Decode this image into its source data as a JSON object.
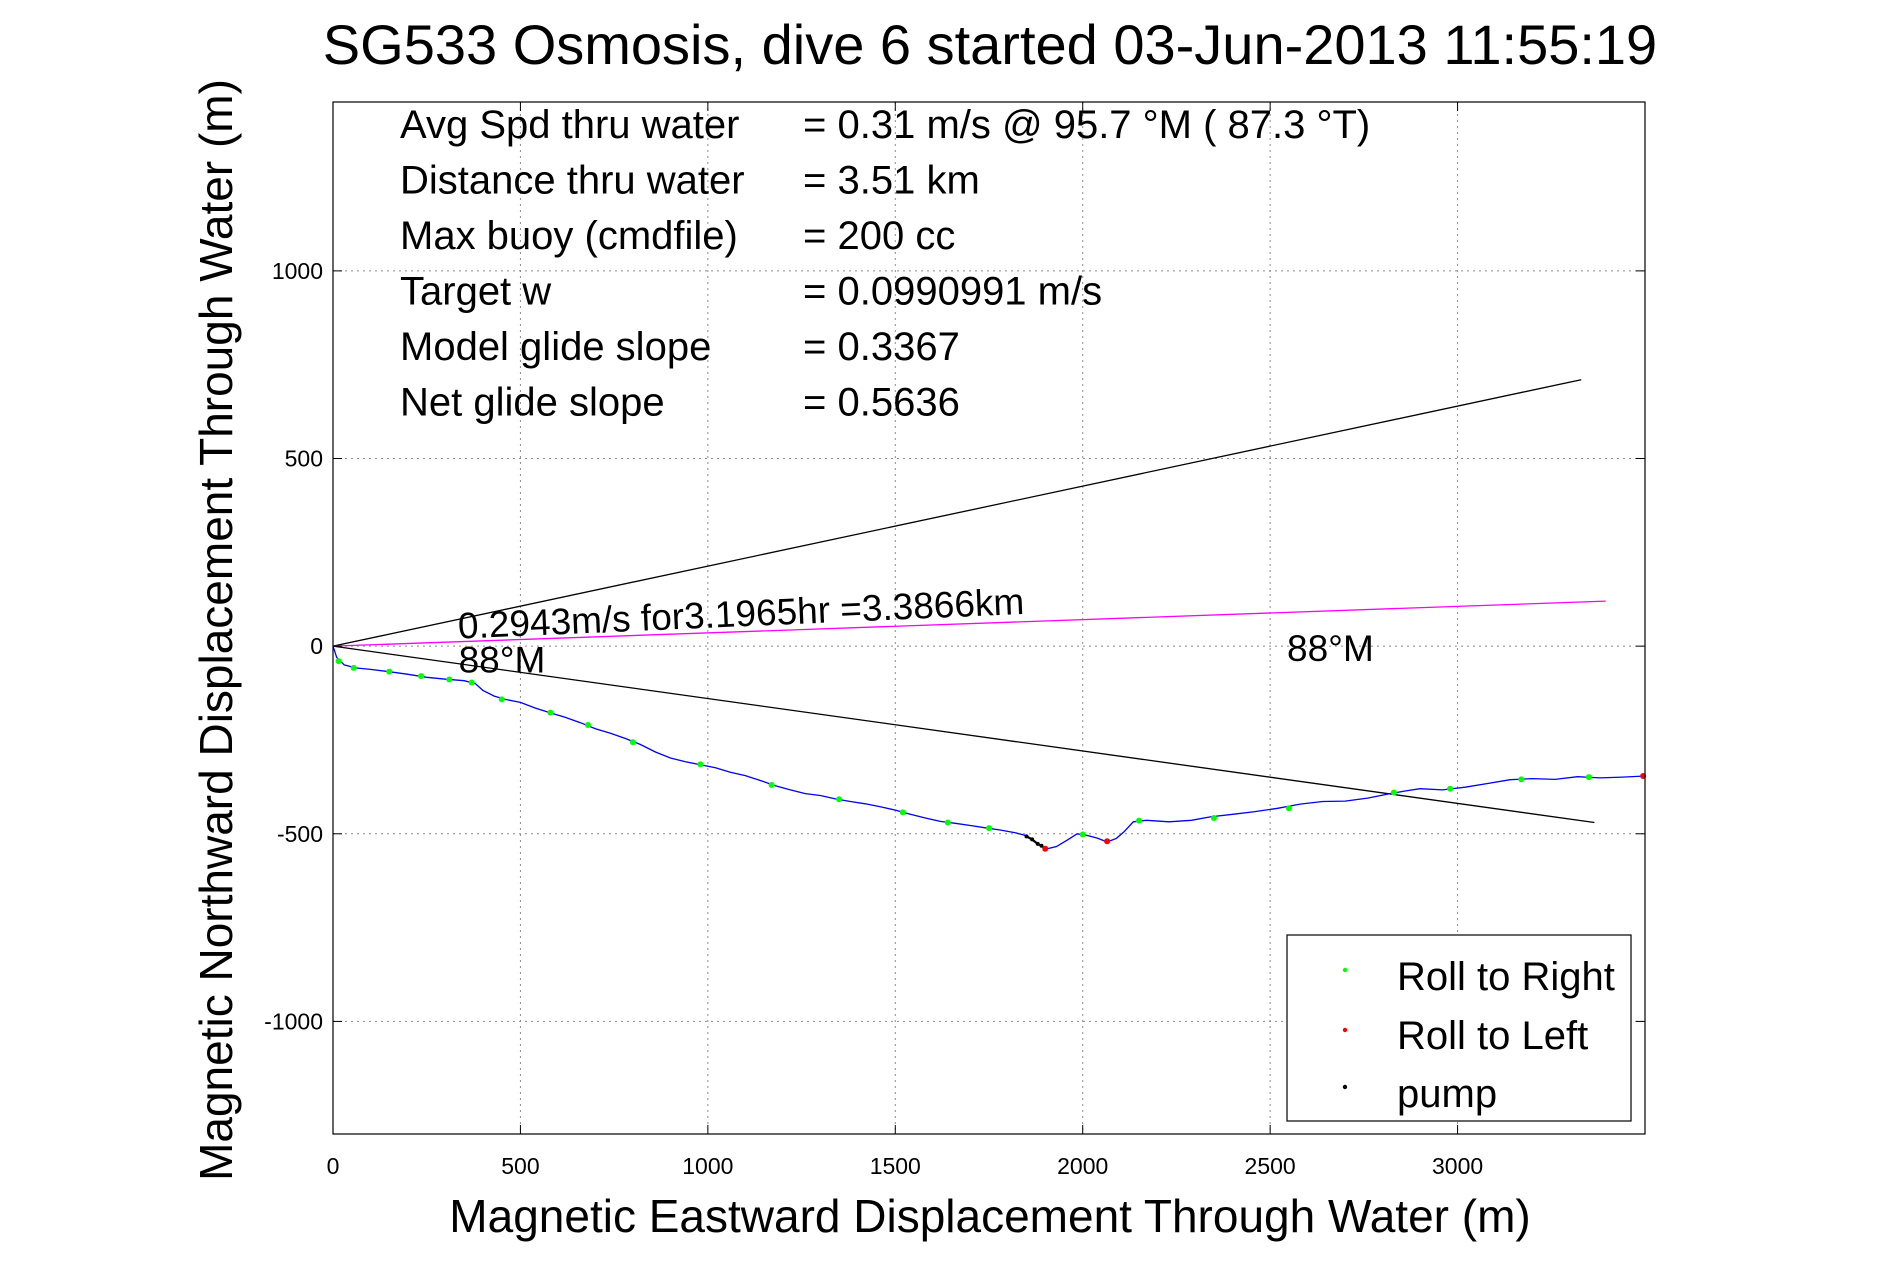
{
  "chart_data": {
    "type": "line",
    "title": "SG533 Osmosis, dive 6 started 03-Jun-2013 11:55:19",
    "xlabel": "Magnetic Eastward Displacement Through Water (m)",
    "ylabel": "Magnetic Northward Displacement Through Water (m)",
    "xlim": [
      0,
      3500
    ],
    "ylim": [
      -1300,
      1450
    ],
    "xticks": [
      0,
      500,
      1000,
      1500,
      2000,
      2500,
      3000
    ],
    "yticks": [
      -1000,
      -500,
      0,
      500,
      1000
    ],
    "grid": true,
    "legend_position": "bottom-right",
    "stats": [
      {
        "label": "Avg Spd thru water",
        "value": "=  0.31 m/s @  95.7 °M ( 87.3 °T)"
      },
      {
        "label": "Distance thru water",
        "value": "=  3.51 km"
      },
      {
        "label": "Max buoy (cmdfile)",
        "value": "= 200 cc"
      },
      {
        "label": "Target w",
        "value": "= 0.0990991 m/s"
      },
      {
        "label": "Model glide slope",
        "value": "= 0.3367"
      },
      {
        "label": "Net glide slope",
        "value": "= 0.5636"
      }
    ],
    "annotations": [
      {
        "text": "0.2943m/s for3.1965hr =3.3866km",
        "x": 335,
        "y": 20,
        "rotation_deg": -2.5
      },
      {
        "text": "88°M",
        "x": 335,
        "y": -70
      },
      {
        "text": "88°M",
        "x": 2545,
        "y": -40
      }
    ],
    "reference_lines": [
      {
        "from": [
          0,
          0
        ],
        "to": [
          3330,
          710
        ],
        "color": "#000000"
      },
      {
        "from": [
          0,
          0
        ],
        "to": [
          3365,
          -470
        ],
        "color": "#000000"
      },
      {
        "from": [
          0,
          0
        ],
        "to": [
          3395,
          120
        ],
        "color": "#ff00ff"
      }
    ],
    "series": [
      {
        "name": "Track",
        "color": "#0000ff",
        "points": [
          [
            0,
            0
          ],
          [
            10,
            -30
          ],
          [
            30,
            -50
          ],
          [
            60,
            -58
          ],
          [
            100,
            -62
          ],
          [
            150,
            -68
          ],
          [
            200,
            -75
          ],
          [
            250,
            -83
          ],
          [
            300,
            -88
          ],
          [
            350,
            -92
          ],
          [
            380,
            -100
          ],
          [
            400,
            -118
          ],
          [
            430,
            -133
          ],
          [
            460,
            -142
          ],
          [
            500,
            -150
          ],
          [
            540,
            -165
          ],
          [
            580,
            -178
          ],
          [
            620,
            -190
          ],
          [
            660,
            -204
          ],
          [
            700,
            -220
          ],
          [
            740,
            -232
          ],
          [
            780,
            -246
          ],
          [
            820,
            -262
          ],
          [
            860,
            -282
          ],
          [
            900,
            -298
          ],
          [
            940,
            -308
          ],
          [
            980,
            -316
          ],
          [
            1020,
            -324
          ],
          [
            1060,
            -336
          ],
          [
            1100,
            -345
          ],
          [
            1140,
            -358
          ],
          [
            1180,
            -372
          ],
          [
            1220,
            -383
          ],
          [
            1260,
            -393
          ],
          [
            1300,
            -398
          ],
          [
            1340,
            -407
          ],
          [
            1380,
            -414
          ],
          [
            1420,
            -420
          ],
          [
            1460,
            -428
          ],
          [
            1500,
            -437
          ],
          [
            1540,
            -448
          ],
          [
            1580,
            -458
          ],
          [
            1620,
            -467
          ],
          [
            1660,
            -472
          ],
          [
            1700,
            -478
          ],
          [
            1740,
            -484
          ],
          [
            1780,
            -490
          ],
          [
            1820,
            -497
          ],
          [
            1850,
            -505
          ],
          [
            1880,
            -527
          ],
          [
            1905,
            -540
          ],
          [
            1930,
            -534
          ],
          [
            1960,
            -516
          ],
          [
            1985,
            -500
          ],
          [
            2010,
            -504
          ],
          [
            2040,
            -512
          ],
          [
            2065,
            -522
          ],
          [
            2090,
            -512
          ],
          [
            2110,
            -495
          ],
          [
            2135,
            -468
          ],
          [
            2170,
            -464
          ],
          [
            2230,
            -468
          ],
          [
            2290,
            -464
          ],
          [
            2340,
            -455
          ],
          [
            2400,
            -448
          ],
          [
            2460,
            -441
          ],
          [
            2520,
            -432
          ],
          [
            2580,
            -421
          ],
          [
            2640,
            -414
          ],
          [
            2700,
            -413
          ],
          [
            2760,
            -405
          ],
          [
            2820,
            -393
          ],
          [
            2860,
            -386
          ],
          [
            2900,
            -380
          ],
          [
            2960,
            -383
          ],
          [
            3020,
            -376
          ],
          [
            3080,
            -366
          ],
          [
            3140,
            -356
          ],
          [
            3200,
            -353
          ],
          [
            3260,
            -355
          ],
          [
            3320,
            -348
          ],
          [
            3380,
            -351
          ],
          [
            3440,
            -349
          ],
          [
            3500,
            -346
          ]
        ]
      },
      {
        "name": "Roll to Right",
        "color": "#00ff00",
        "points": [
          [
            15,
            -40
          ],
          [
            55,
            -58
          ],
          [
            150,
            -68
          ],
          [
            235,
            -80
          ],
          [
            310,
            -89
          ],
          [
            370,
            -97
          ],
          [
            450,
            -142
          ],
          [
            580,
            -177
          ],
          [
            680,
            -210
          ],
          [
            800,
            -256
          ],
          [
            980,
            -315
          ],
          [
            1170,
            -370
          ],
          [
            1350,
            -408
          ],
          [
            1520,
            -443
          ],
          [
            1640,
            -470
          ],
          [
            1750,
            -485
          ],
          [
            2000,
            -502
          ],
          [
            2150,
            -465
          ],
          [
            2350,
            -458
          ],
          [
            2550,
            -432
          ],
          [
            2830,
            -390
          ],
          [
            2980,
            -380
          ],
          [
            3170,
            -355
          ],
          [
            3350,
            -349
          ]
        ]
      },
      {
        "name": "Roll to Left",
        "color": "#ff0000",
        "points": [
          [
            1900,
            -540
          ],
          [
            2065,
            -520
          ],
          [
            3495,
            -346
          ]
        ]
      },
      {
        "name": "pump",
        "color": "#000000",
        "points": [
          [
            1850,
            -507
          ],
          [
            1865,
            -515
          ],
          [
            1880,
            -527
          ],
          [
            1890,
            -532
          ]
        ]
      }
    ]
  }
}
